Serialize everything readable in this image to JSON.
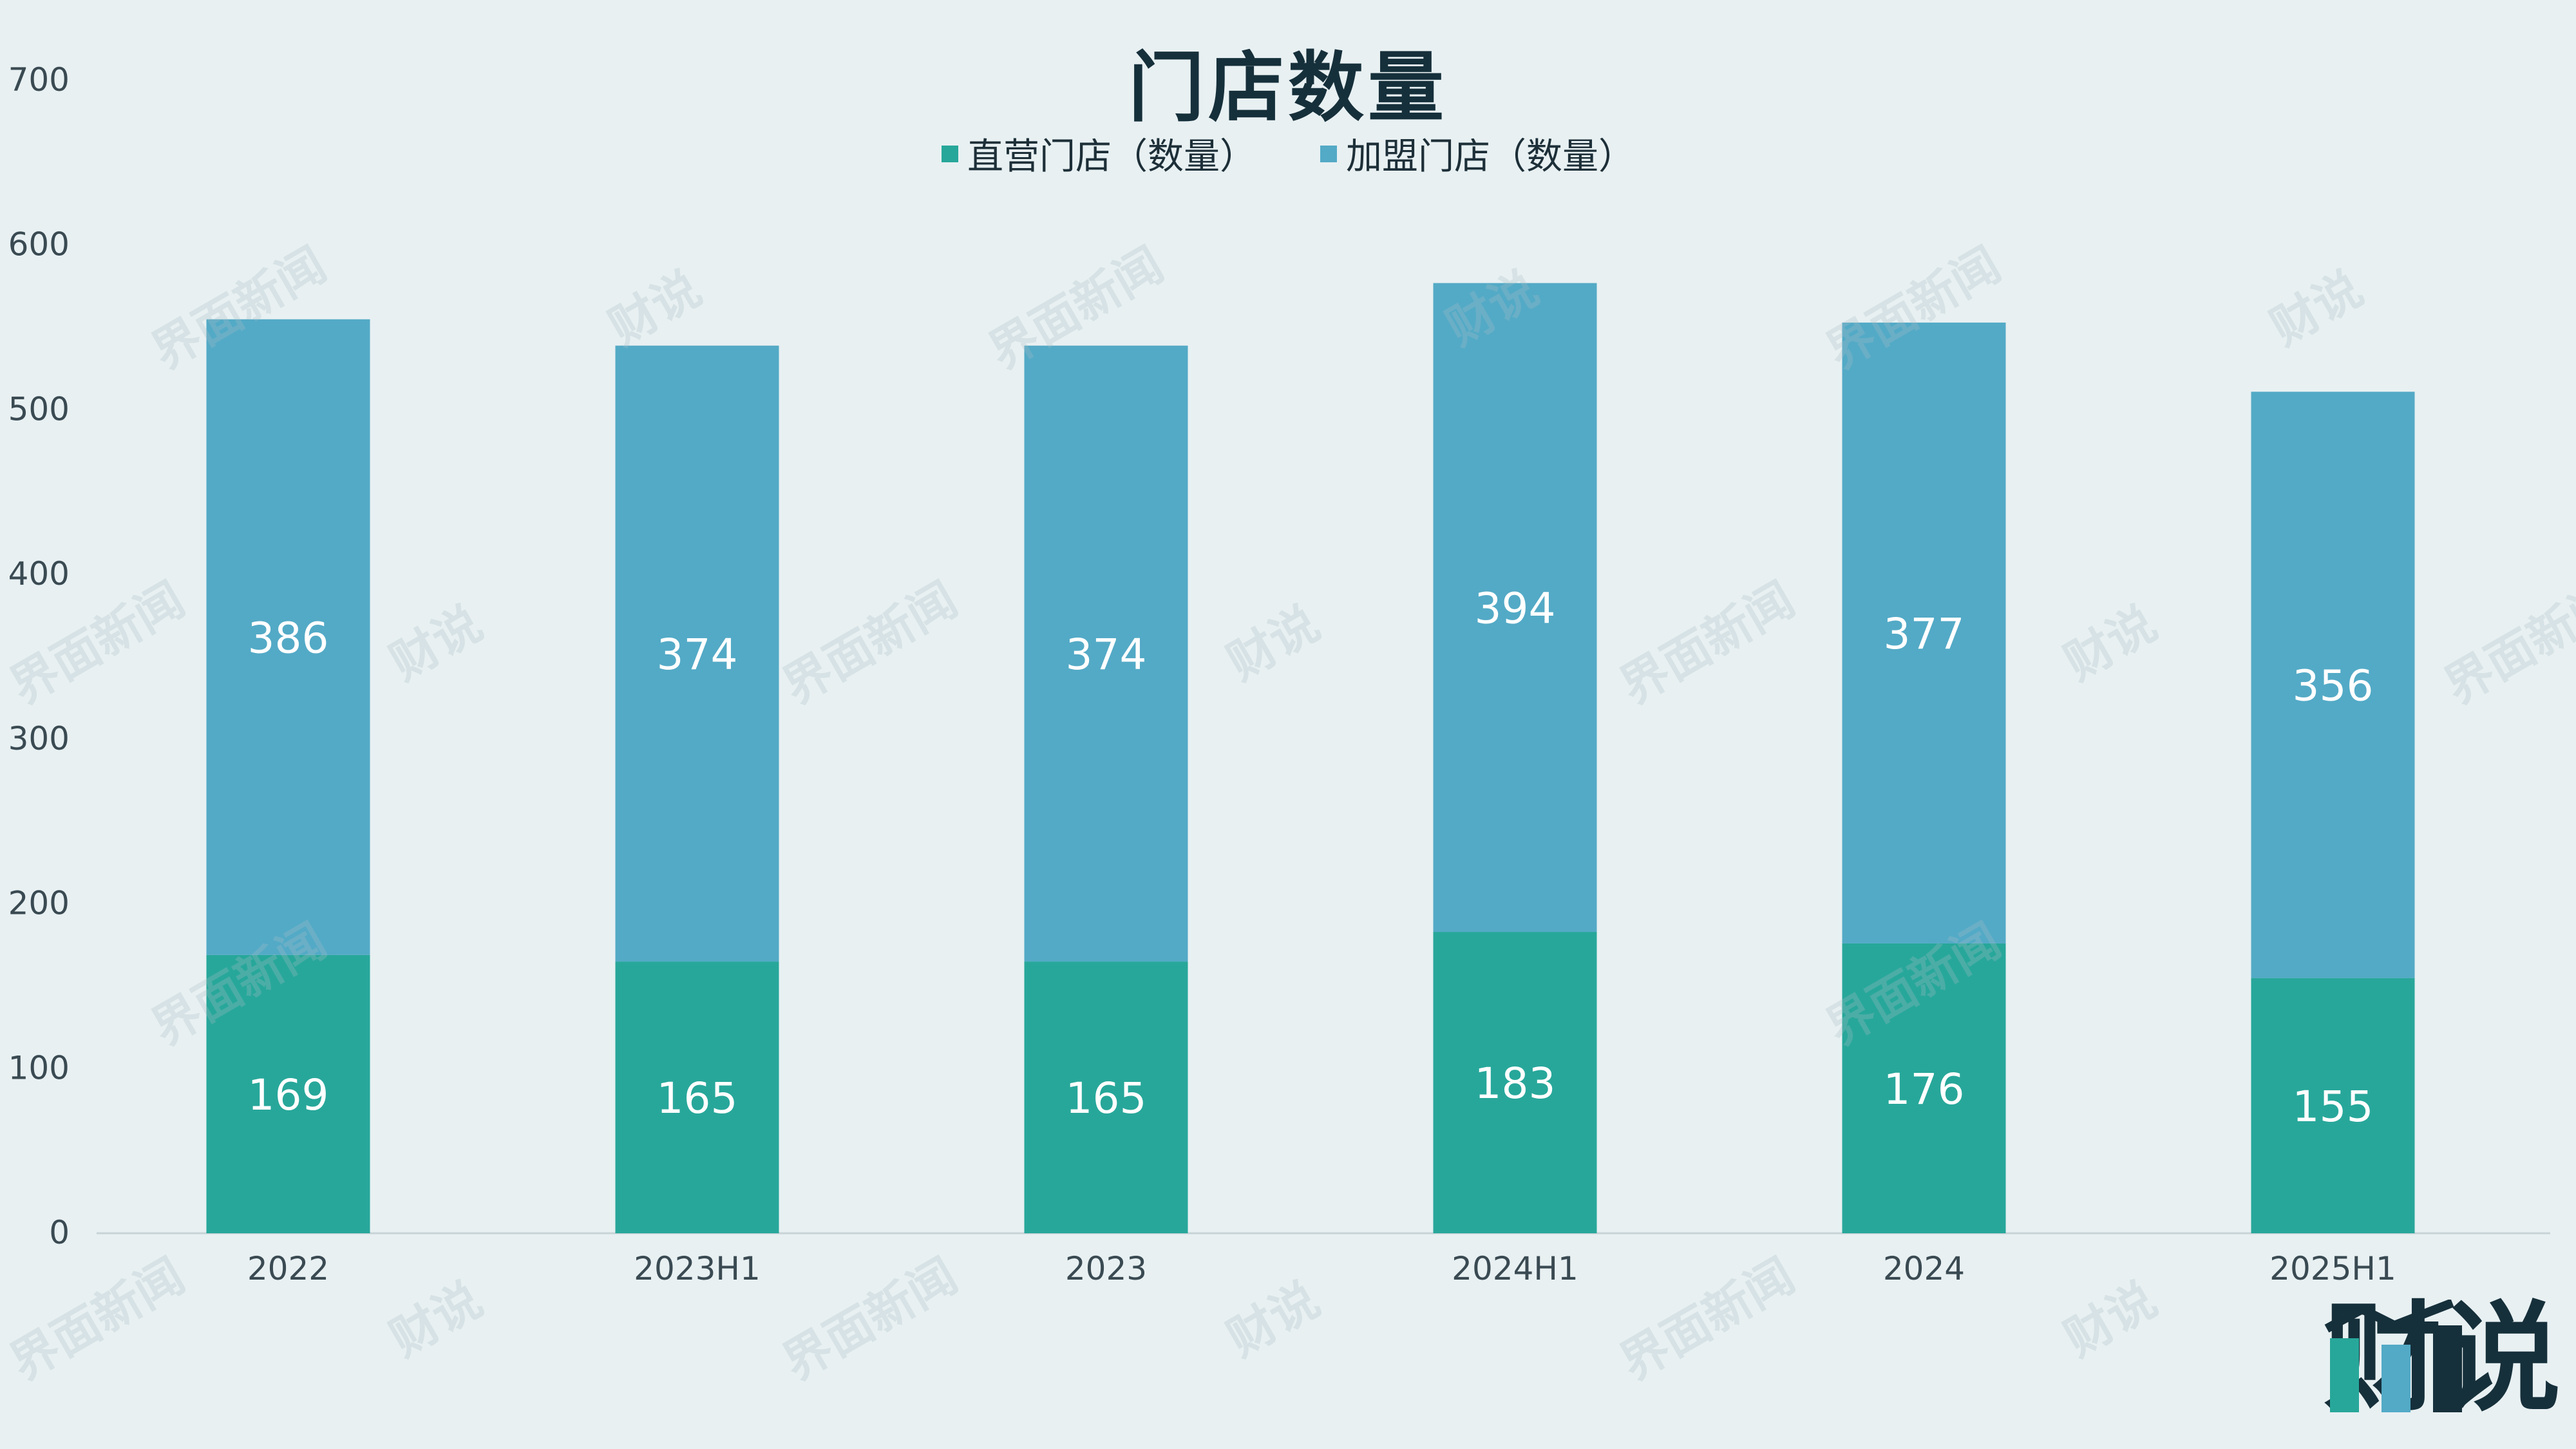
{
  "chart_data": {
    "type": "bar",
    "stacked": true,
    "title": "门店数量",
    "categories": [
      "2022",
      "2023H1",
      "2023",
      "2024H1",
      "2024",
      "2025H1"
    ],
    "series": [
      {
        "name": "直营门店（数量）",
        "values": [
          169,
          165,
          165,
          183,
          176,
          155
        ],
        "color": "#27a79a"
      },
      {
        "name": "加盟门店（数量）",
        "values": [
          386,
          374,
          374,
          394,
          377,
          356
        ],
        "color": "#53aac6"
      }
    ],
    "ylim": [
      0,
      700
    ],
    "yticks": [
      0,
      100,
      200,
      300,
      400,
      500,
      600,
      700
    ],
    "grid": false,
    "legend_position": "top-center",
    "data_labels": true
  },
  "watermarks": {
    "text_a": "界面新闻",
    "text_b": "财说"
  },
  "logo": {
    "text": "财说",
    "colors": [
      "#27a79a",
      "#53aac6",
      "#16303b"
    ]
  }
}
